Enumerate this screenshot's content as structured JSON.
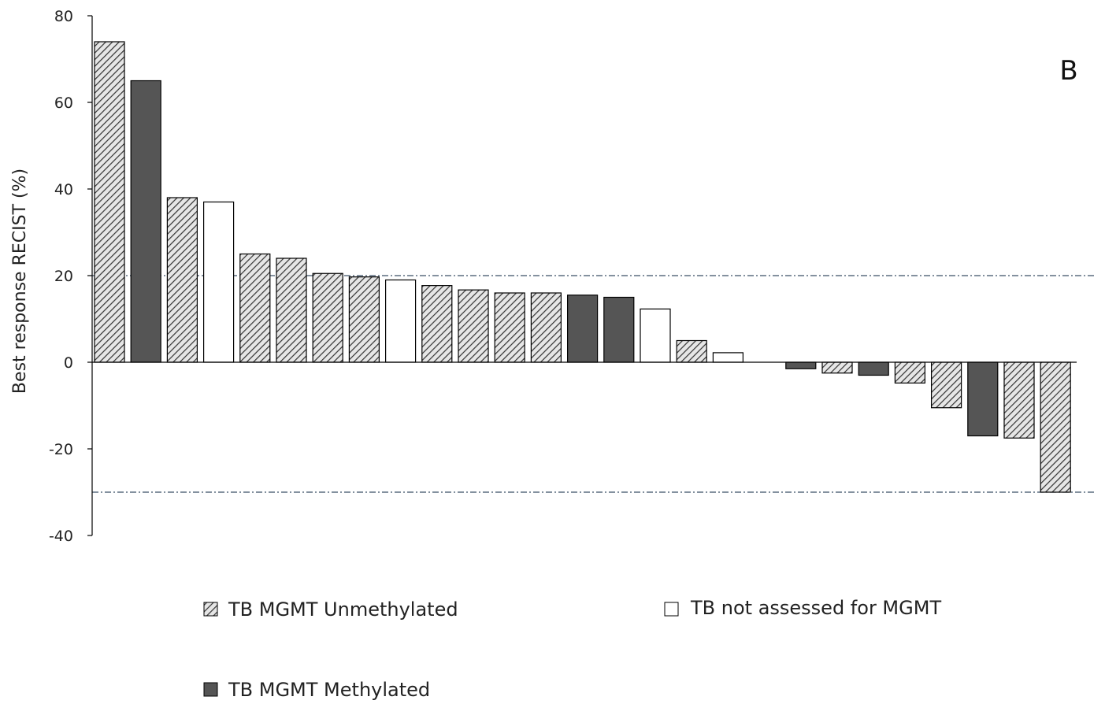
{
  "chart_data": {
    "type": "bar",
    "panel_label": "B",
    "ylabel": "Best response RECIST (%)",
    "xlabel": "",
    "ylim": [
      -40,
      80
    ],
    "yticks": [
      80,
      60,
      40,
      20,
      0,
      -20,
      -40
    ],
    "ytick_labels": [
      "80",
      "60",
      "40",
      "20",
      "0",
      "-20",
      "-40"
    ],
    "reference_lines": [
      20,
      -30
    ],
    "grid": false,
    "legend_placement": "bottom",
    "legend": [
      {
        "key": "unmethylated",
        "label": "TB MGMT Unmethylated"
      },
      {
        "key": "not_assessed",
        "label": "TB not assessed for MGMT"
      },
      {
        "key": "methylated",
        "label": "TB MGMT Methylated"
      }
    ],
    "colors": {
      "methylated": "#555555",
      "not_assessed": "#ffffff",
      "hatch_fill": "#e6e6e6",
      "hatch_line": "#333333",
      "edge": "#000000",
      "reference_line": "#3b4f66"
    },
    "bars": [
      {
        "value": 74,
        "group": "unmethylated"
      },
      {
        "value": 65,
        "group": "methylated"
      },
      {
        "value": 38,
        "group": "unmethylated"
      },
      {
        "value": 37,
        "group": "not_assessed"
      },
      {
        "value": 25,
        "group": "unmethylated"
      },
      {
        "value": 24,
        "group": "unmethylated"
      },
      {
        "value": 20.5,
        "group": "unmethylated"
      },
      {
        "value": 19.7,
        "group": "unmethylated"
      },
      {
        "value": 19,
        "group": "not_assessed"
      },
      {
        "value": 17.7,
        "group": "unmethylated"
      },
      {
        "value": 16.7,
        "group": "unmethylated"
      },
      {
        "value": 16,
        "group": "unmethylated"
      },
      {
        "value": 16,
        "group": "unmethylated"
      },
      {
        "value": 15.5,
        "group": "methylated"
      },
      {
        "value": 15,
        "group": "methylated"
      },
      {
        "value": 12.3,
        "group": "not_assessed"
      },
      {
        "value": 5,
        "group": "unmethylated"
      },
      {
        "value": 2.2,
        "group": "not_assessed"
      },
      {
        "value": 0,
        "group": "none"
      },
      {
        "value": -1.5,
        "group": "methylated"
      },
      {
        "value": -2.5,
        "group": "unmethylated"
      },
      {
        "value": -3,
        "group": "methylated"
      },
      {
        "value": -4.8,
        "group": "unmethylated"
      },
      {
        "value": -10.5,
        "group": "unmethylated"
      },
      {
        "value": -17,
        "group": "methylated"
      },
      {
        "value": -17.5,
        "group": "unmethylated"
      },
      {
        "value": -30,
        "group": "unmethylated"
      }
    ]
  }
}
